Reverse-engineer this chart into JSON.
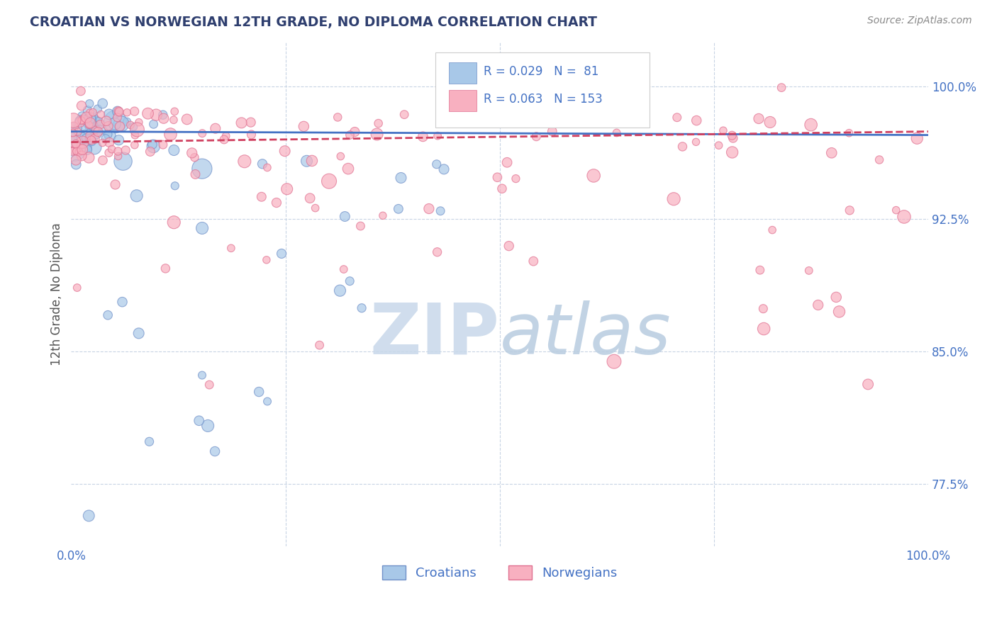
{
  "title": "CROATIAN VS NORWEGIAN 12TH GRADE, NO DIPLOMA CORRELATION CHART",
  "source_text": "Source: ZipAtlas.com",
  "ylabel": "12th Grade, No Diploma",
  "xlim": [
    0.0,
    1.0
  ],
  "ylim": [
    0.74,
    1.025
  ],
  "legend_blue_r": "0.029",
  "legend_blue_n": "81",
  "legend_pink_r": "0.063",
  "legend_pink_n": "153",
  "legend_blue_label": "Croatians",
  "legend_pink_label": "Norwegians",
  "blue_color": "#a8c8e8",
  "blue_edge_color": "#7090c8",
  "pink_color": "#f8b0c0",
  "pink_edge_color": "#e07090",
  "blue_line_color": "#4472c4",
  "pink_line_color": "#d04060",
  "title_color": "#2f3f6f",
  "axis_label_color": "#4472c4",
  "legend_r_color": "#4472c4",
  "watermark_zip_color": "#c8d8e8",
  "watermark_atlas_color": "#b8cce4",
  "background_color": "#ffffff",
  "grid_color": "#c8d4e4",
  "n_blue": 81,
  "n_pink": 153,
  "blue_intercept": 0.9745,
  "blue_slope": -0.002,
  "pink_intercept": 0.9685,
  "pink_slope": 0.006
}
